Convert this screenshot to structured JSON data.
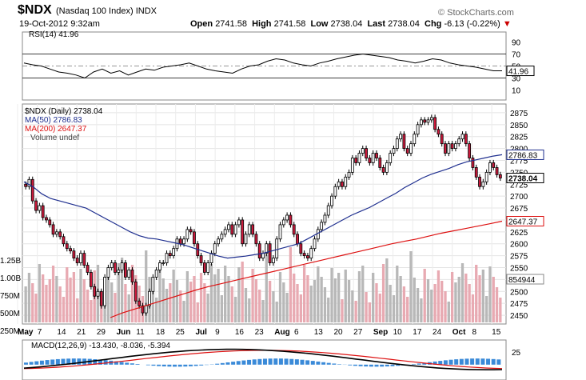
{
  "header": {
    "symbol": "$NDX",
    "name": "(Nasdaq 100 Index)",
    "exchange": "INDX",
    "datetime": "19-Oct-2012 9:32am",
    "open_label": "Open",
    "open": "2741.58",
    "high_label": "High",
    "high": "2741.58",
    "low_label": "Low",
    "low": "2738.04",
    "last_label": "Last",
    "last": "2738.04",
    "chg_label": "Chg",
    "chg": "-6.13 (-0.22%)",
    "brand": "© StockCharts.com"
  },
  "colors": {
    "up": "#ffffff",
    "down": "#cc1a3c",
    "ma50": "#1f2f8f",
    "ma200": "#dd1111",
    "rsi": "#000000",
    "volume_up": "#b8b8b8",
    "volume_down": "#e8aab2",
    "macd": "#000000",
    "signal": "#dd1111",
    "hist": "#3a8ad8"
  },
  "chart_data": {
    "type": "line",
    "x_ticks": [
      "May",
      "7",
      "14",
      "21",
      "29",
      "Jun",
      "11",
      "18",
      "25",
      "Jul",
      "9",
      "16",
      "23",
      "Aug",
      "6",
      "13",
      "20",
      "27",
      "Sep",
      "10",
      "17",
      "24",
      "Oct",
      "8",
      "15"
    ],
    "price": {
      "legend": "$NDX (Daily) 2738.04",
      "yticks": [
        2450,
        2475,
        2500,
        2525,
        2550,
        2575,
        2600,
        2625,
        2650,
        2675,
        2700,
        2725,
        2750,
        2775,
        2800,
        2825,
        2850,
        2875
      ],
      "ylim": [
        2435,
        2890
      ],
      "close": [
        2720,
        2735,
        2690,
        2670,
        2680,
        2655,
        2650,
        2640,
        2620,
        2625,
        2615,
        2600,
        2590,
        2585,
        2570,
        2560,
        2580,
        2555,
        2540,
        2510,
        2490,
        2500,
        2470,
        2530,
        2550,
        2560,
        2540,
        2545,
        2560,
        2530,
        2545,
        2520,
        2480,
        2470,
        2455,
        2470,
        2500,
        2530,
        2545,
        2560,
        2560,
        2580,
        2575,
        2590,
        2610,
        2600,
        2610,
        2630,
        2625,
        2600,
        2575,
        2560,
        2540,
        2560,
        2580,
        2600,
        2610,
        2620,
        2630,
        2640,
        2620,
        2640,
        2650,
        2600,
        2620,
        2640,
        2620,
        2600,
        2570,
        2580,
        2600,
        2560,
        2570,
        2610,
        2640,
        2650,
        2660,
        2640,
        2620,
        2600,
        2580,
        2575,
        2570,
        2590,
        2610,
        2630,
        2645,
        2660,
        2680,
        2700,
        2720,
        2730,
        2720,
        2740,
        2750,
        2780,
        2770,
        2790,
        2800,
        2780,
        2770,
        2790,
        2780,
        2760,
        2750,
        2770,
        2790,
        2800,
        2820,
        2830,
        2800,
        2790,
        2810,
        2830,
        2850,
        2860,
        2855,
        2860,
        2865,
        2840,
        2830,
        2810,
        2790,
        2810,
        2800,
        2810,
        2820,
        2830,
        2810,
        2780,
        2760,
        2740,
        2720,
        2730,
        2750,
        2770,
        2760,
        2745,
        2738.04
      ],
      "ma50": {
        "label": "MA(50) 2786.83",
        "values": [
          2730,
          2720,
          2705,
          2695,
          2690,
          2685,
          2680,
          2675,
          2665,
          2655,
          2645,
          2635,
          2625,
          2617,
          2612,
          2610,
          2606,
          2602,
          2598,
          2592,
          2586,
          2580,
          2574,
          2570,
          2572,
          2574,
          2577,
          2580,
          2585,
          2590,
          2595,
          2600,
          2610,
          2620,
          2630,
          2640,
          2650,
          2660,
          2668,
          2676,
          2686,
          2696,
          2706,
          2718,
          2728,
          2738,
          2746,
          2752,
          2758,
          2766,
          2772,
          2776,
          2780,
          2784,
          2786.83
        ]
      },
      "ma200": {
        "label": "MA(200) 2647.37",
        "values": [
          2445,
          2455,
          2463,
          2471,
          2479,
          2487,
          2495,
          2503,
          2510,
          2516,
          2522,
          2528,
          2534,
          2540,
          2546,
          2552,
          2558,
          2564,
          2570,
          2576,
          2582,
          2588,
          2594,
          2600,
          2605,
          2610,
          2616,
          2622,
          2627,
          2632,
          2637,
          2642,
          2647.37
        ]
      },
      "last_tags": [
        "2786.83",
        "2738.04",
        "2647.37"
      ]
    },
    "volume": {
      "legend": "Volume undef",
      "yticks": [
        "1.25B",
        "1.00B",
        "750M",
        "500M",
        "250M"
      ],
      "ylim": [
        0,
        1350
      ],
      "last_tag": "854944"
    },
    "rsi": {
      "legend": "RSI(14) 41.96",
      "yticks": [
        90,
        70,
        50,
        30,
        10
      ],
      "ylim": [
        0,
        100
      ],
      "values": [
        55,
        52,
        50,
        45,
        40,
        38,
        35,
        30,
        40,
        45,
        38,
        42,
        35,
        40,
        45,
        43,
        48,
        50,
        52,
        55,
        50,
        45,
        42,
        40,
        38,
        45,
        50,
        52,
        58,
        62,
        60,
        55,
        52,
        50,
        55,
        58,
        62,
        65,
        68,
        70,
        68,
        66,
        64,
        60,
        58,
        55,
        58,
        62,
        60,
        55,
        52,
        50,
        48,
        45,
        42,
        41.96
      ],
      "last_tag": "41.96"
    },
    "macd": {
      "legend": "MACD(12,26,9) -13.430, -8.036, -5.394",
      "yticks": [
        25
      ],
      "ylim": [
        -30,
        45
      ]
    }
  }
}
